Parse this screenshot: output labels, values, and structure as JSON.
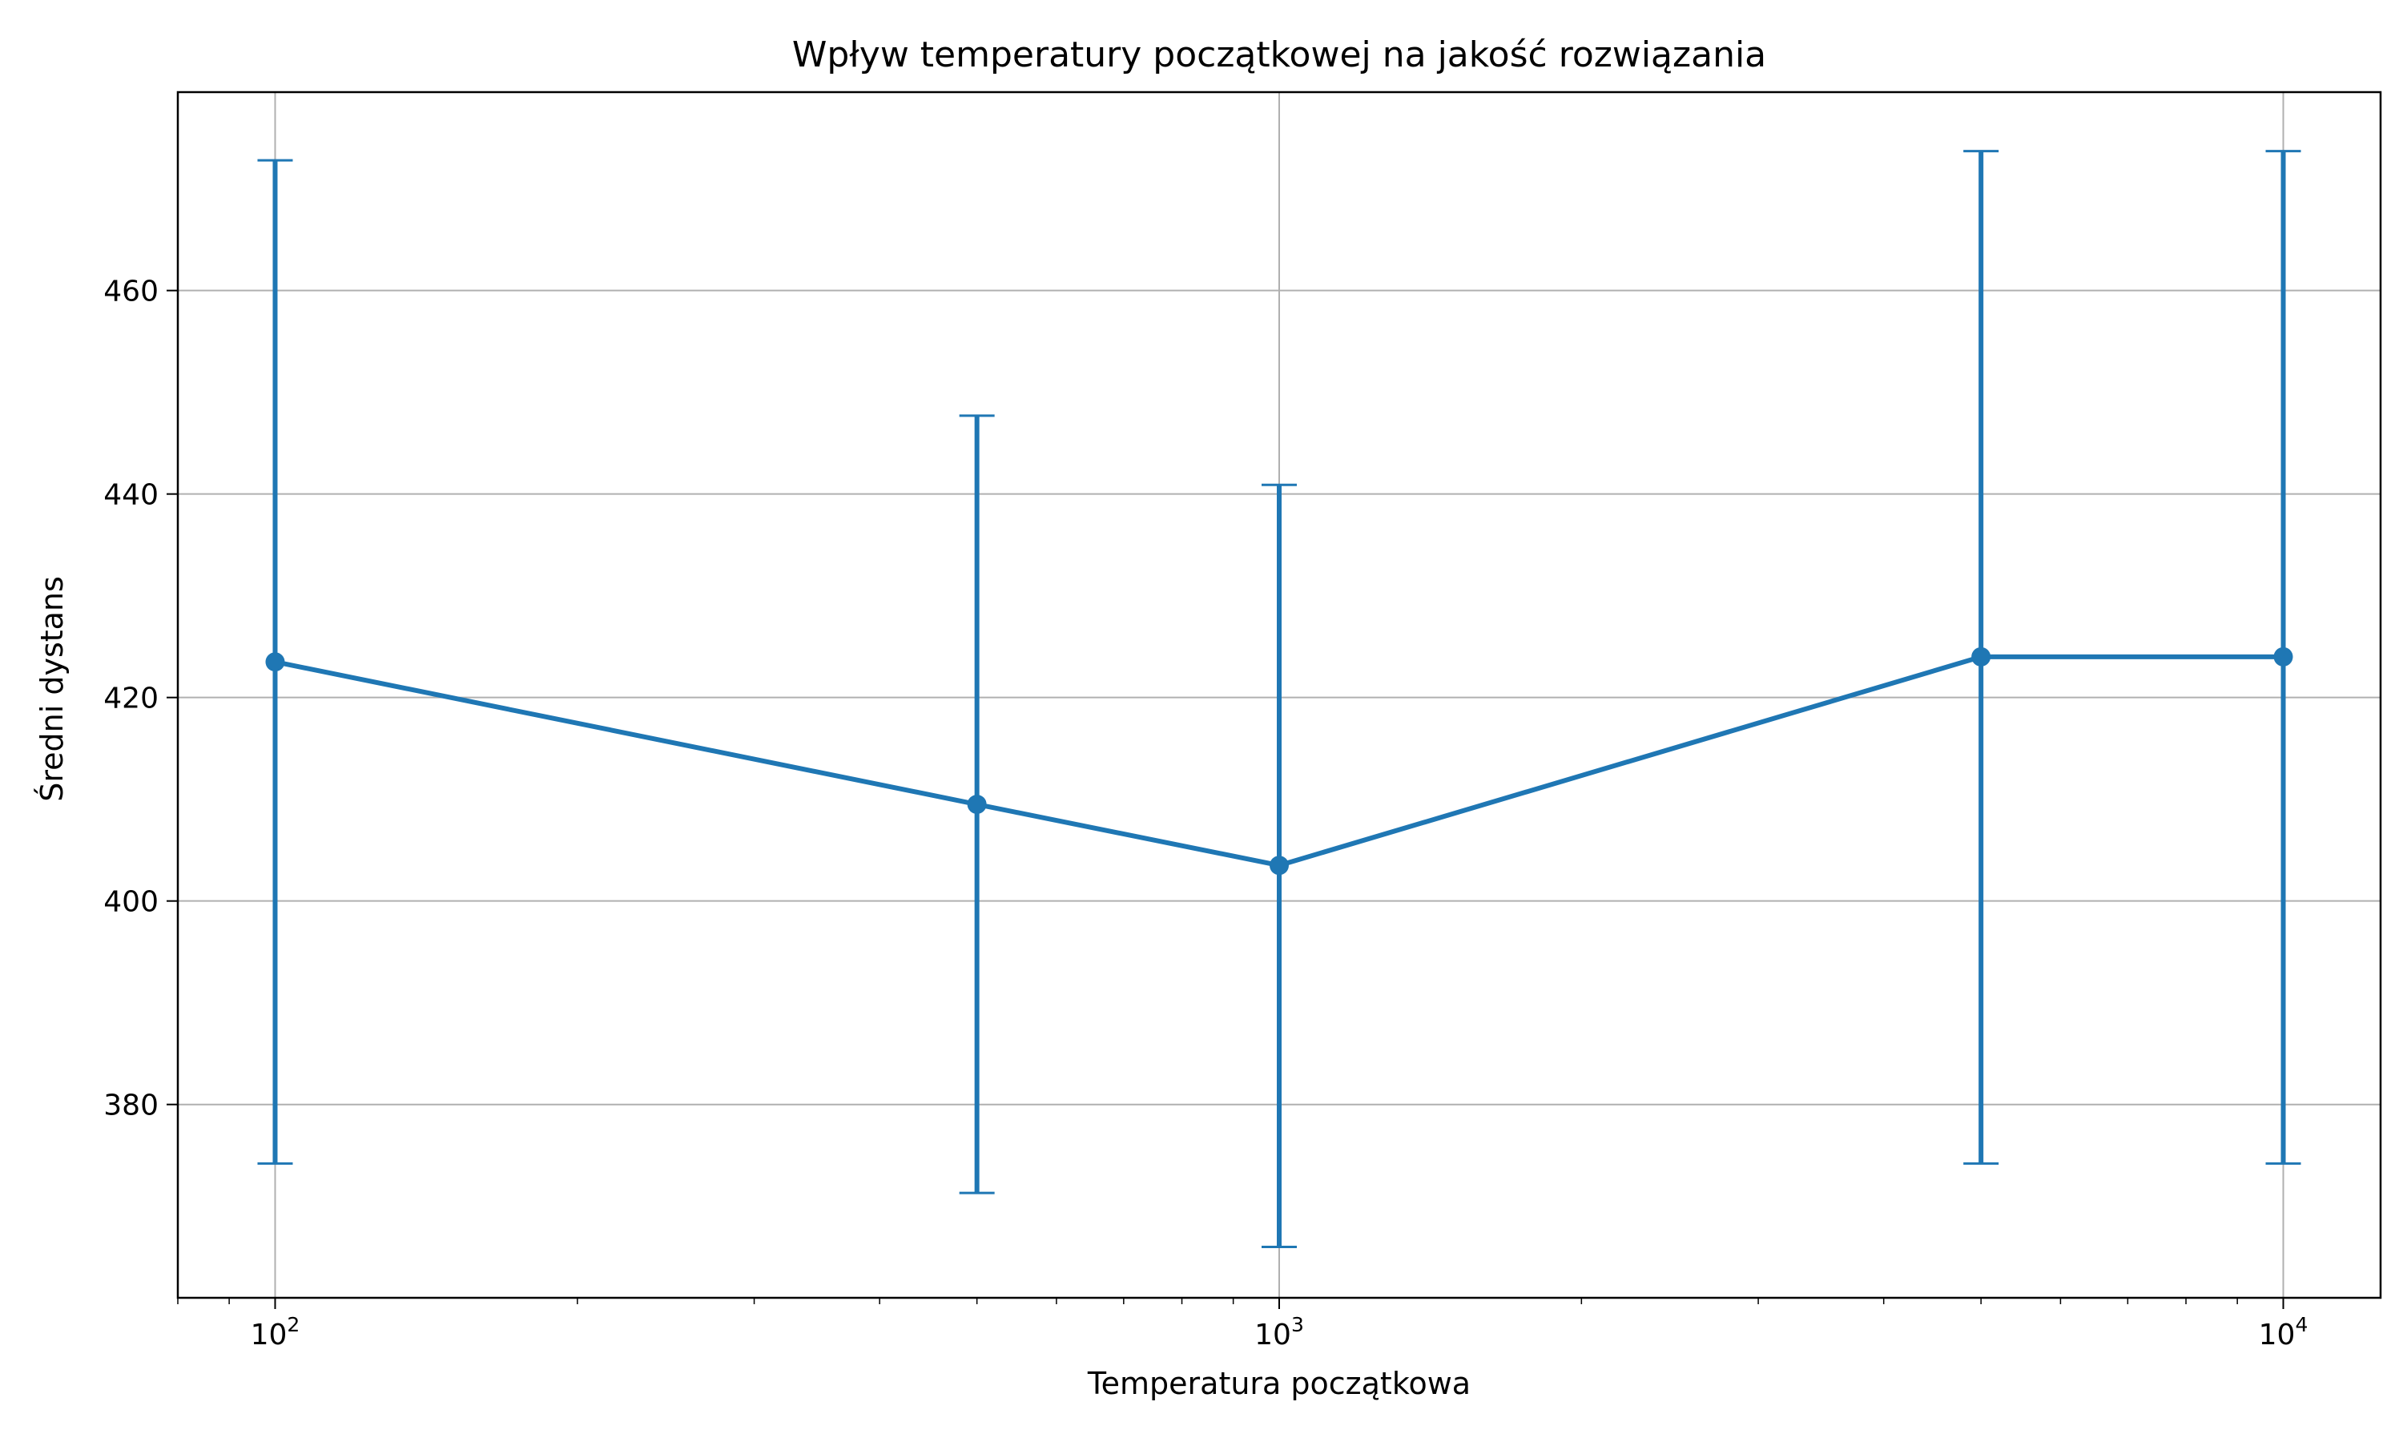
{
  "chart_data": {
    "type": "line",
    "title": "Wpływ temperatury początkowej na jakość rozwiązania",
    "xlabel": "Temperatura początkowa",
    "ylabel": "Średni dystans",
    "xscale": "log",
    "xlim": [
      80,
      12500
    ],
    "ylim": [
      361,
      479.5
    ],
    "grid": true,
    "color": "#1f77b4",
    "x_ticks": [
      {
        "base": "10",
        "exp": "2",
        "value": 100
      },
      {
        "base": "10",
        "exp": "3",
        "value": 1000
      },
      {
        "base": "10",
        "exp": "4",
        "value": 10000
      }
    ],
    "y_ticks": [
      380,
      400,
      420,
      440,
      460
    ],
    "series": [
      {
        "x": [
          100,
          500,
          1000,
          5000,
          10000
        ],
        "y": [
          423.5,
          409.5,
          403.5,
          424.0,
          424.0
        ],
        "yerr_low": [
          374.2,
          371.3,
          366.0,
          374.2,
          374.2
        ],
        "yerr_high": [
          472.8,
          447.7,
          440.9,
          473.7,
          473.7
        ]
      }
    ]
  }
}
